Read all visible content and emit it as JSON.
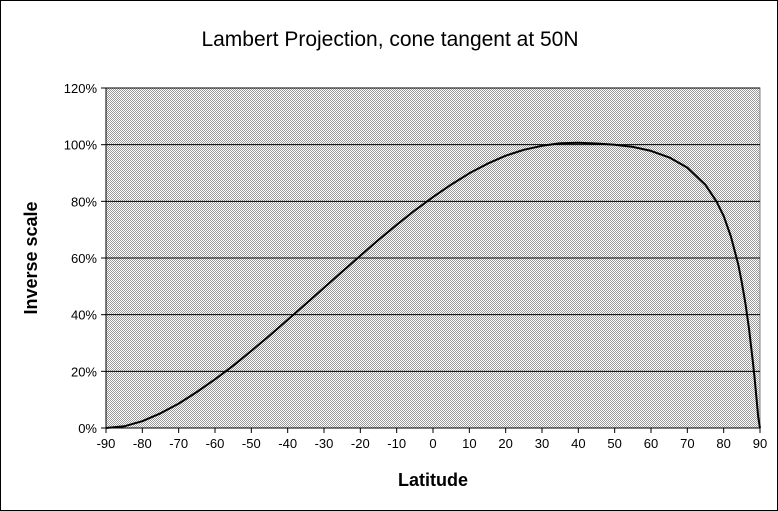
{
  "chart_data": {
    "type": "line",
    "title": "Lambert Projection, cone tangent at 50N",
    "xlabel": "Latitude",
    "ylabel": "Inverse scale",
    "xlim": [
      -90,
      90
    ],
    "ylim": [
      0,
      120
    ],
    "x_ticks": [
      -90,
      -80,
      -70,
      -60,
      -50,
      -40,
      -30,
      -20,
      -10,
      0,
      10,
      20,
      30,
      40,
      50,
      60,
      70,
      80,
      90
    ],
    "y_ticks": [
      0,
      20,
      40,
      60,
      80,
      100,
      120
    ],
    "y_tick_labels": [
      "0%",
      "20%",
      "40%",
      "60%",
      "80%",
      "100%",
      "120%"
    ],
    "grid": "horizontal",
    "legend": "none",
    "plot_background": "#c8c8c8",
    "line_color": "#000000",
    "series": [
      {
        "x": [
          -90,
          -85,
          -80,
          -75,
          -70,
          -65,
          -60,
          -55,
          -50,
          -45,
          -40,
          -35,
          -30,
          -25,
          -20,
          -15,
          -10,
          -5,
          0,
          5,
          10,
          15,
          20,
          25,
          30,
          35,
          40,
          45,
          50,
          55,
          60,
          65,
          70,
          75,
          78,
          80,
          82,
          84,
          85,
          86,
          87,
          88,
          88.5,
          89,
          89.5,
          90
        ],
        "y": [
          0,
          0.6,
          2.4,
          5.2,
          8.6,
          12.7,
          17.2,
          22.0,
          27.2,
          32.6,
          38.2,
          43.8,
          49.5,
          55.2,
          60.8,
          66.4,
          71.7,
          76.8,
          81.5,
          85.9,
          89.9,
          93.3,
          96.1,
          98.2,
          99.6,
          100.5,
          100.7,
          100.4,
          100,
          99.2,
          97.8,
          95.5,
          91.9,
          85.8,
          80.0,
          74.8,
          67.6,
          57.8,
          51.4,
          43.8,
          34.8,
          23.9,
          17.6,
          10.9,
          3.9,
          0
        ]
      }
    ]
  }
}
